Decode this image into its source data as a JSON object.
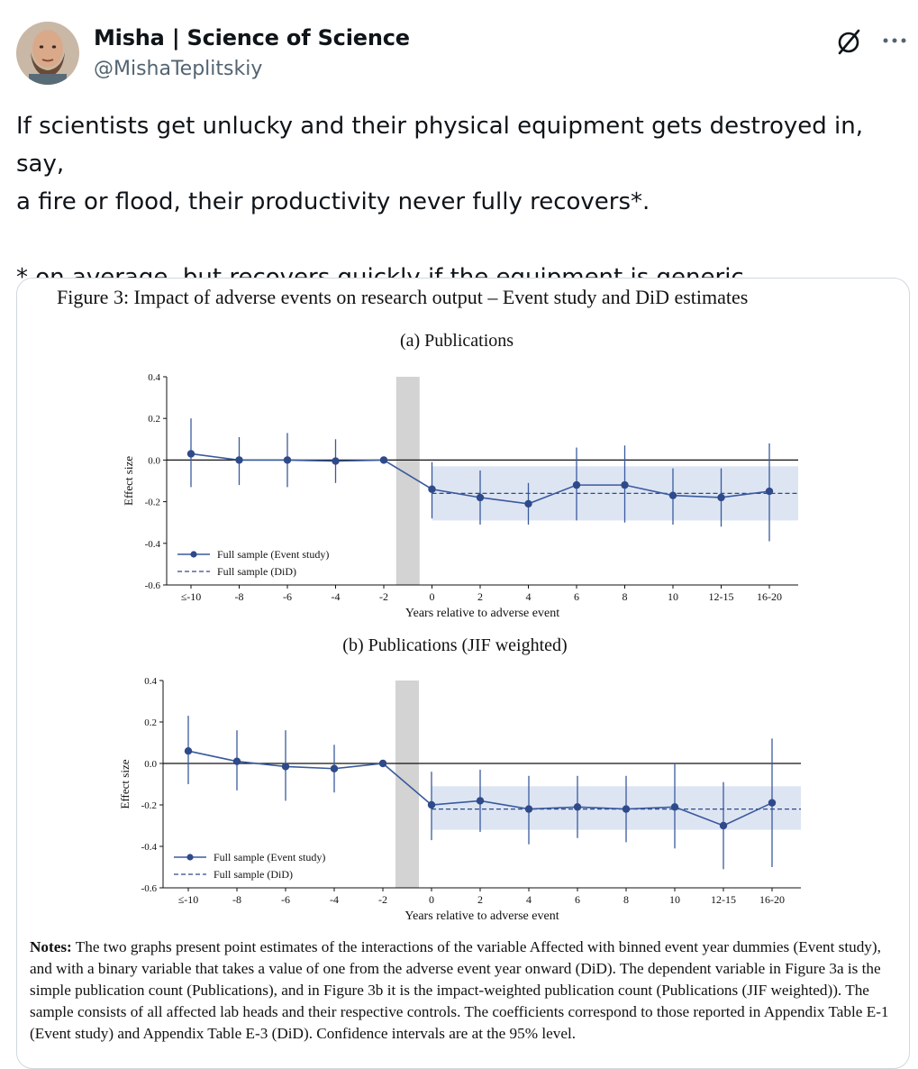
{
  "author": {
    "name": "Misha | Science of Science",
    "handle": "@MishaTeplitskiy"
  },
  "icons": {
    "grok": "grok-icon",
    "more": "more-dots-icon"
  },
  "tweet": {
    "line1": "If scientists get unlucky and their physical equipment gets destroyed in, say,",
    "line2": "a fire or flood, their productivity never fully recovers*.",
    "line3": "* on average, but recovers quickly if the equipment is generic"
  },
  "figure": {
    "title": "Figure 3: Impact of adverse events on research output – Event study and DiD estimates",
    "notes_label": "Notes:",
    "notes_text": "The two graphs present point estimates of the interactions of the variable Affected with binned event year dummies (Event study), and with a binary variable that takes a value of one from the adverse event year onward (DiD). The dependent variable in Figure 3a is the simple publication count (Publications), and in Figure 3b it is the impact-weighted publication count (Publications (JIF weighted)). The sample consists of all affected lab heads and their respective controls. The coefficients correspond to those reported in Appendix Table E-1 (Event study) and Appendix Table E-3 (DiD). Confidence intervals are at the 95% level."
  },
  "chart_data": [
    {
      "type": "line",
      "subtitle": "(a) Publications",
      "xlabel": "Years relative to adverse event",
      "ylabel": "Effect size",
      "ylim": [
        -0.6,
        0.4
      ],
      "yticks": [
        "0.4",
        "0.2",
        "0.0",
        "-0.2",
        "-0.4",
        "-0.6"
      ],
      "categories": [
        "≤-10",
        "-8",
        "-6",
        "-4",
        "-2",
        "0",
        "2",
        "4",
        "6",
        "8",
        "10",
        "12-15",
        "16-20"
      ],
      "series": [
        {
          "name": "Full sample (Event study)",
          "values": [
            0.03,
            0.0,
            0.0,
            -0.005,
            0.0,
            -0.14,
            -0.18,
            -0.21,
            -0.12,
            -0.12,
            -0.17,
            -0.18,
            -0.15
          ],
          "ci_low": [
            -0.13,
            -0.12,
            -0.13,
            -0.11,
            0.0,
            -0.28,
            -0.31,
            -0.31,
            -0.29,
            -0.3,
            -0.31,
            -0.32,
            -0.39
          ],
          "ci_high": [
            0.2,
            0.11,
            0.13,
            0.1,
            0.0,
            -0.01,
            -0.05,
            -0.11,
            0.06,
            0.07,
            -0.04,
            -0.04,
            0.08
          ]
        },
        {
          "name": "Full sample (DiD)",
          "value": -0.16,
          "ci": [
            -0.29,
            -0.03
          ]
        }
      ],
      "shaded_event_year": "-1",
      "grid": false,
      "legend": "bottom-left"
    },
    {
      "type": "line",
      "subtitle": "(b) Publications (JIF weighted)",
      "xlabel": "Years relative to adverse event",
      "ylabel": "Effect size",
      "ylim": [
        -0.6,
        0.4
      ],
      "yticks": [
        "0.4",
        "0.2",
        "0.0",
        "-0.2",
        "-0.4",
        "-0.6"
      ],
      "categories": [
        "≤-10",
        "-8",
        "-6",
        "-4",
        "-2",
        "0",
        "2",
        "4",
        "6",
        "8",
        "10",
        "12-15",
        "16-20"
      ],
      "series": [
        {
          "name": "Full sample (Event study)",
          "values": [
            0.06,
            0.01,
            -0.015,
            -0.025,
            0.0,
            -0.2,
            -0.18,
            -0.22,
            -0.21,
            -0.22,
            -0.21,
            -0.3,
            -0.19
          ],
          "ci_low": [
            -0.1,
            -0.13,
            -0.18,
            -0.14,
            0.0,
            -0.37,
            -0.33,
            -0.39,
            -0.36,
            -0.38,
            -0.41,
            -0.51,
            -0.5
          ],
          "ci_high": [
            0.23,
            0.16,
            0.16,
            0.09,
            0.0,
            -0.04,
            -0.03,
            -0.06,
            -0.06,
            -0.06,
            0.0,
            -0.09,
            0.12
          ]
        },
        {
          "name": "Full sample (DiD)",
          "value": -0.22,
          "ci": [
            -0.32,
            -0.11
          ]
        }
      ],
      "shaded_event_year": "-1",
      "grid": false,
      "legend": "bottom-left"
    }
  ]
}
